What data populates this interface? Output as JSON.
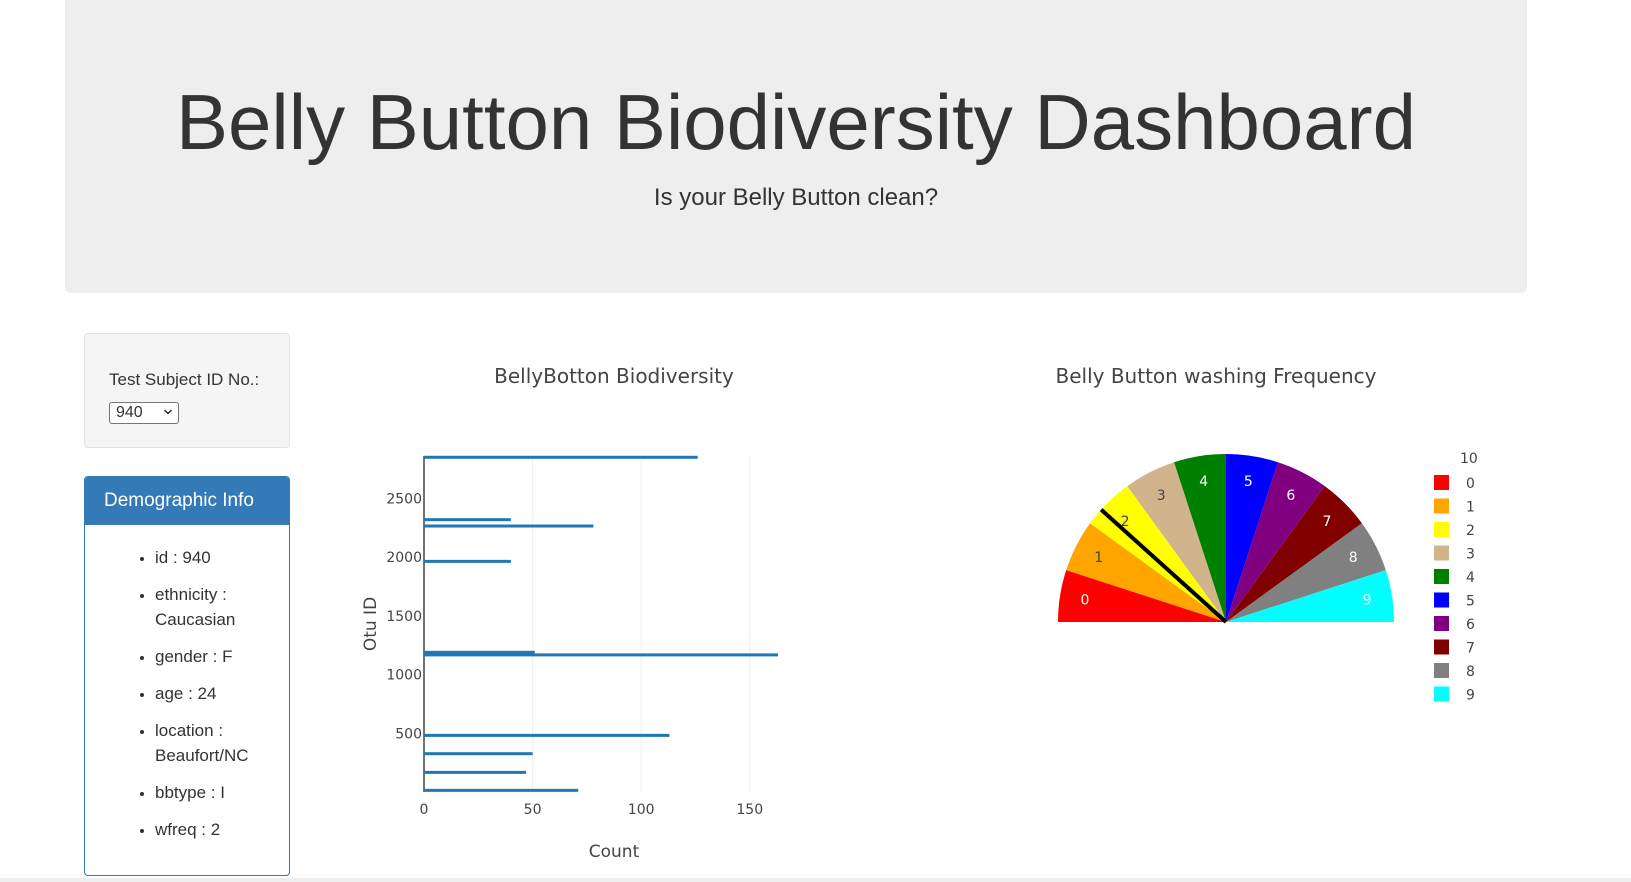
{
  "header": {
    "title": "Belly Button Biodiversity Dashboard",
    "subtitle": "Is your Belly Button clean?"
  },
  "selector": {
    "label": "Test Subject ID No.:",
    "value": "940"
  },
  "demographics": {
    "title": "Demographic Info",
    "items": [
      "id : 940",
      "ethnicity : Caucasian",
      "gender : F",
      "age : 24",
      "location : Beaufort/NC",
      "bbtype : I",
      "wfreq : 2"
    ]
  },
  "colors": {
    "bar": "#1f77b4",
    "panel_heading": "#337ab7"
  },
  "chart_data": [
    {
      "type": "bar",
      "orientation": "horizontal",
      "title": "BellyBotton Biodiversity",
      "xlabel": "Count",
      "ylabel": "Otu ID",
      "xlim": [
        0,
        163
      ],
      "ylim": [
        0,
        2860
      ],
      "xticks": [
        "0",
        "50",
        "100",
        "150"
      ],
      "yticks": [
        "500",
        "1000",
        "1500",
        "2000",
        "2500"
      ],
      "bars": [
        {
          "y": 2849,
          "x": 126
        },
        {
          "y": 2318,
          "x": 40
        },
        {
          "y": 2264,
          "x": 78
        },
        {
          "y": 1963,
          "x": 40
        },
        {
          "y": 1189,
          "x": 51
        },
        {
          "y": 1167,
          "x": 163
        },
        {
          "y": 482,
          "x": 113
        },
        {
          "y": 326,
          "x": 50
        },
        {
          "y": 167,
          "x": 47
        },
        {
          "y": 14,
          "x": 71
        }
      ]
    },
    {
      "type": "pie",
      "title": "Belly Button washing Frequency",
      "legend_placement": "right",
      "legend_header": "10",
      "value": 2,
      "range": [
        0,
        9
      ],
      "slices": [
        {
          "label": "0",
          "color": "#ff0000"
        },
        {
          "label": "1",
          "color": "#ffa500"
        },
        {
          "label": "2",
          "color": "#ffff00"
        },
        {
          "label": "3",
          "color": "#d2b48c"
        },
        {
          "label": "4",
          "color": "#008000"
        },
        {
          "label": "5",
          "color": "#0000ff"
        },
        {
          "label": "6",
          "color": "#800080"
        },
        {
          "label": "7",
          "color": "#800000"
        },
        {
          "label": "8",
          "color": "#808080"
        },
        {
          "label": "9",
          "color": "#00ffff"
        }
      ]
    }
  ]
}
